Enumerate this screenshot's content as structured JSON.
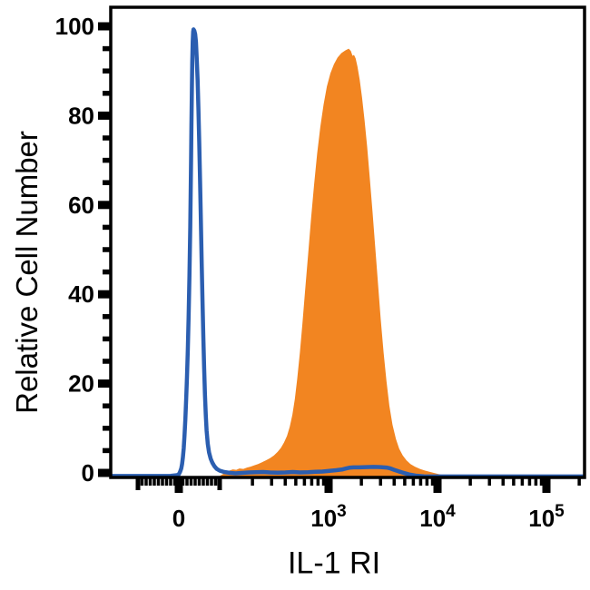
{
  "chart_data": {
    "type": "area",
    "subtype": "flow-cytometry-overlay-histogram",
    "title": "",
    "xlabel": "IL-1 RI",
    "ylabel": "Relative Cell Number",
    "x_scale": "biexponential (linear from -100 to 100, logarithmic decades beyond)",
    "ylim": [
      0,
      100
    ],
    "y_ticks_major": [
      0,
      20,
      40,
      60,
      80,
      100
    ],
    "y_tick_minor_step": 5,
    "x_ticks_major": [
      {
        "value": 0,
        "base": "0",
        "exp": ""
      },
      {
        "value": 1000,
        "base": "10",
        "exp": "3"
      },
      {
        "value": 10000,
        "base": "10",
        "exp": "4"
      },
      {
        "value": 100000,
        "base": "10",
        "exp": "5"
      }
    ],
    "x_ticks_medium": [
      -100,
      100
    ],
    "x_ticks_minor": [
      -90,
      -80,
      -70,
      -60,
      -50,
      -40,
      -30,
      -20,
      -10,
      10,
      20,
      30,
      40,
      50,
      60,
      70,
      80,
      90,
      200,
      300,
      400,
      500,
      600,
      700,
      800,
      900,
      2000,
      3000,
      4000,
      5000,
      6000,
      7000,
      8000,
      9000,
      20000,
      30000,
      40000,
      50000,
      60000,
      70000,
      80000,
      90000,
      200000
    ],
    "grid": false,
    "legend": "none",
    "frame_color": "#000000",
    "series": [
      {
        "name": "orange-filled-histogram",
        "style": "filled-area",
        "color": "#F28521",
        "points": [
          [
            100,
            -0.7
          ],
          [
            112,
            0
          ],
          [
            122,
            0.5
          ],
          [
            132,
            0.8
          ],
          [
            142,
            0.7
          ],
          [
            152,
            1
          ],
          [
            165,
            0.9
          ],
          [
            178,
            1.2
          ],
          [
            192,
            1.4
          ],
          [
            208,
            1.7
          ],
          [
            225,
            2
          ],
          [
            245,
            2.4
          ],
          [
            265,
            2.8
          ],
          [
            290,
            3.3
          ],
          [
            315,
            3.9
          ],
          [
            340,
            4.7
          ],
          [
            365,
            5.6
          ],
          [
            390,
            6.8
          ],
          [
            415,
            8.3
          ],
          [
            440,
            10.3
          ],
          [
            465,
            13
          ],
          [
            490,
            16.5
          ],
          [
            515,
            21
          ],
          [
            545,
            27
          ],
          [
            575,
            33.5
          ],
          [
            610,
            41
          ],
          [
            650,
            49
          ],
          [
            690,
            57
          ],
          [
            735,
            64.5
          ],
          [
            785,
            71.5
          ],
          [
            840,
            77.5
          ],
          [
            900,
            82.5
          ],
          [
            965,
            86.5
          ],
          [
            1040,
            89.5
          ],
          [
            1120,
            91.5
          ],
          [
            1210,
            93
          ],
          [
            1310,
            94
          ],
          [
            1420,
            94.6
          ],
          [
            1530,
            95
          ],
          [
            1600,
            94.5
          ],
          [
            1660,
            93.4
          ],
          [
            1710,
            93.6
          ],
          [
            1770,
            92.8
          ],
          [
            1840,
            91
          ],
          [
            1930,
            88
          ],
          [
            2030,
            84
          ],
          [
            2140,
            79
          ],
          [
            2260,
            73
          ],
          [
            2390,
            66
          ],
          [
            2530,
            58.5
          ],
          [
            2680,
            50.5
          ],
          [
            2840,
            42.5
          ],
          [
            3010,
            34.5
          ],
          [
            3200,
            27
          ],
          [
            3400,
            20.5
          ],
          [
            3620,
            15
          ],
          [
            3860,
            10.8
          ],
          [
            4150,
            7.6
          ],
          [
            4450,
            5.4
          ],
          [
            4800,
            3.9
          ],
          [
            5200,
            2.8
          ],
          [
            5650,
            2
          ],
          [
            6200,
            1.4
          ],
          [
            6900,
            0.9
          ],
          [
            7700,
            0.5
          ],
          [
            8600,
            0.2
          ],
          [
            9600,
            -0.1
          ],
          [
            10800,
            -0.4
          ],
          [
            12300,
            -0.7
          ]
        ]
      },
      {
        "name": "blue-open-histogram",
        "style": "line",
        "color": "#2B5EB0",
        "stroke_width": 4.5,
        "points": [
          [
            -178,
            -0.7
          ],
          [
            -120,
            -0.7
          ],
          [
            -60,
            -0.7
          ],
          [
            -20,
            -0.65
          ],
          [
            -5,
            -0.5
          ],
          [
            0,
            -0.3
          ],
          [
            3,
            0.2
          ],
          [
            6,
            1
          ],
          [
            8,
            2
          ],
          [
            10,
            3.5
          ],
          [
            12,
            5.5
          ],
          [
            14,
            8.5
          ],
          [
            16,
            12
          ],
          [
            18,
            16.5
          ],
          [
            20,
            21.5
          ],
          [
            22,
            27.5
          ],
          [
            24,
            35
          ],
          [
            26,
            44
          ],
          [
            28,
            55
          ],
          [
            30,
            70
          ],
          [
            31,
            78
          ],
          [
            32,
            86
          ],
          [
            33,
            92
          ],
          [
            34,
            96.5
          ],
          [
            35,
            98.8
          ],
          [
            36,
            99.3
          ],
          [
            38,
            99
          ],
          [
            40,
            98.3
          ],
          [
            42,
            96.5
          ],
          [
            44,
            92.5
          ],
          [
            46,
            88
          ],
          [
            48,
            81.5
          ],
          [
            50,
            74
          ],
          [
            52,
            65.5
          ],
          [
            54,
            56.5
          ],
          [
            56,
            47
          ],
          [
            58,
            38.5
          ],
          [
            60,
            30.5
          ],
          [
            62,
            23.5
          ],
          [
            64,
            17.5
          ],
          [
            66,
            13
          ],
          [
            68,
            9.5
          ],
          [
            71,
            6.5
          ],
          [
            74,
            4.6
          ],
          [
            78,
            3.2
          ],
          [
            82,
            2.3
          ],
          [
            87,
            1.5
          ],
          [
            93,
            0.9
          ],
          [
            100,
            0.5
          ],
          [
            110,
            0.2
          ],
          [
            125,
            0
          ],
          [
            140,
            -0.1
          ],
          [
            160,
            0
          ],
          [
            185,
            0.1
          ],
          [
            215,
            0.15
          ],
          [
            250,
            0.2
          ],
          [
            290,
            0.1
          ],
          [
            340,
            0.05
          ],
          [
            400,
            0.1
          ],
          [
            470,
            0.2
          ],
          [
            550,
            0.1
          ],
          [
            650,
            0.15
          ],
          [
            760,
            0.25
          ],
          [
            880,
            0.3
          ],
          [
            1020,
            0.45
          ],
          [
            1180,
            0.6
          ],
          [
            1350,
            0.8
          ],
          [
            1450,
            1
          ],
          [
            1550,
            1.15
          ],
          [
            1700,
            1.25
          ],
          [
            1900,
            1.25
          ],
          [
            2200,
            1.3
          ],
          [
            2600,
            1.35
          ],
          [
            3000,
            1.3
          ],
          [
            3400,
            1.2
          ],
          [
            3700,
            1
          ],
          [
            4000,
            0.7
          ],
          [
            4400,
            0.35
          ],
          [
            4900,
            0
          ],
          [
            5500,
            -0.35
          ],
          [
            6300,
            -0.6
          ],
          [
            7500,
            -0.75
          ],
          [
            12000,
            -0.8
          ],
          [
            40000,
            -0.8
          ],
          [
            120000,
            -0.8
          ],
          [
            250000,
            -0.8
          ]
        ]
      }
    ]
  }
}
